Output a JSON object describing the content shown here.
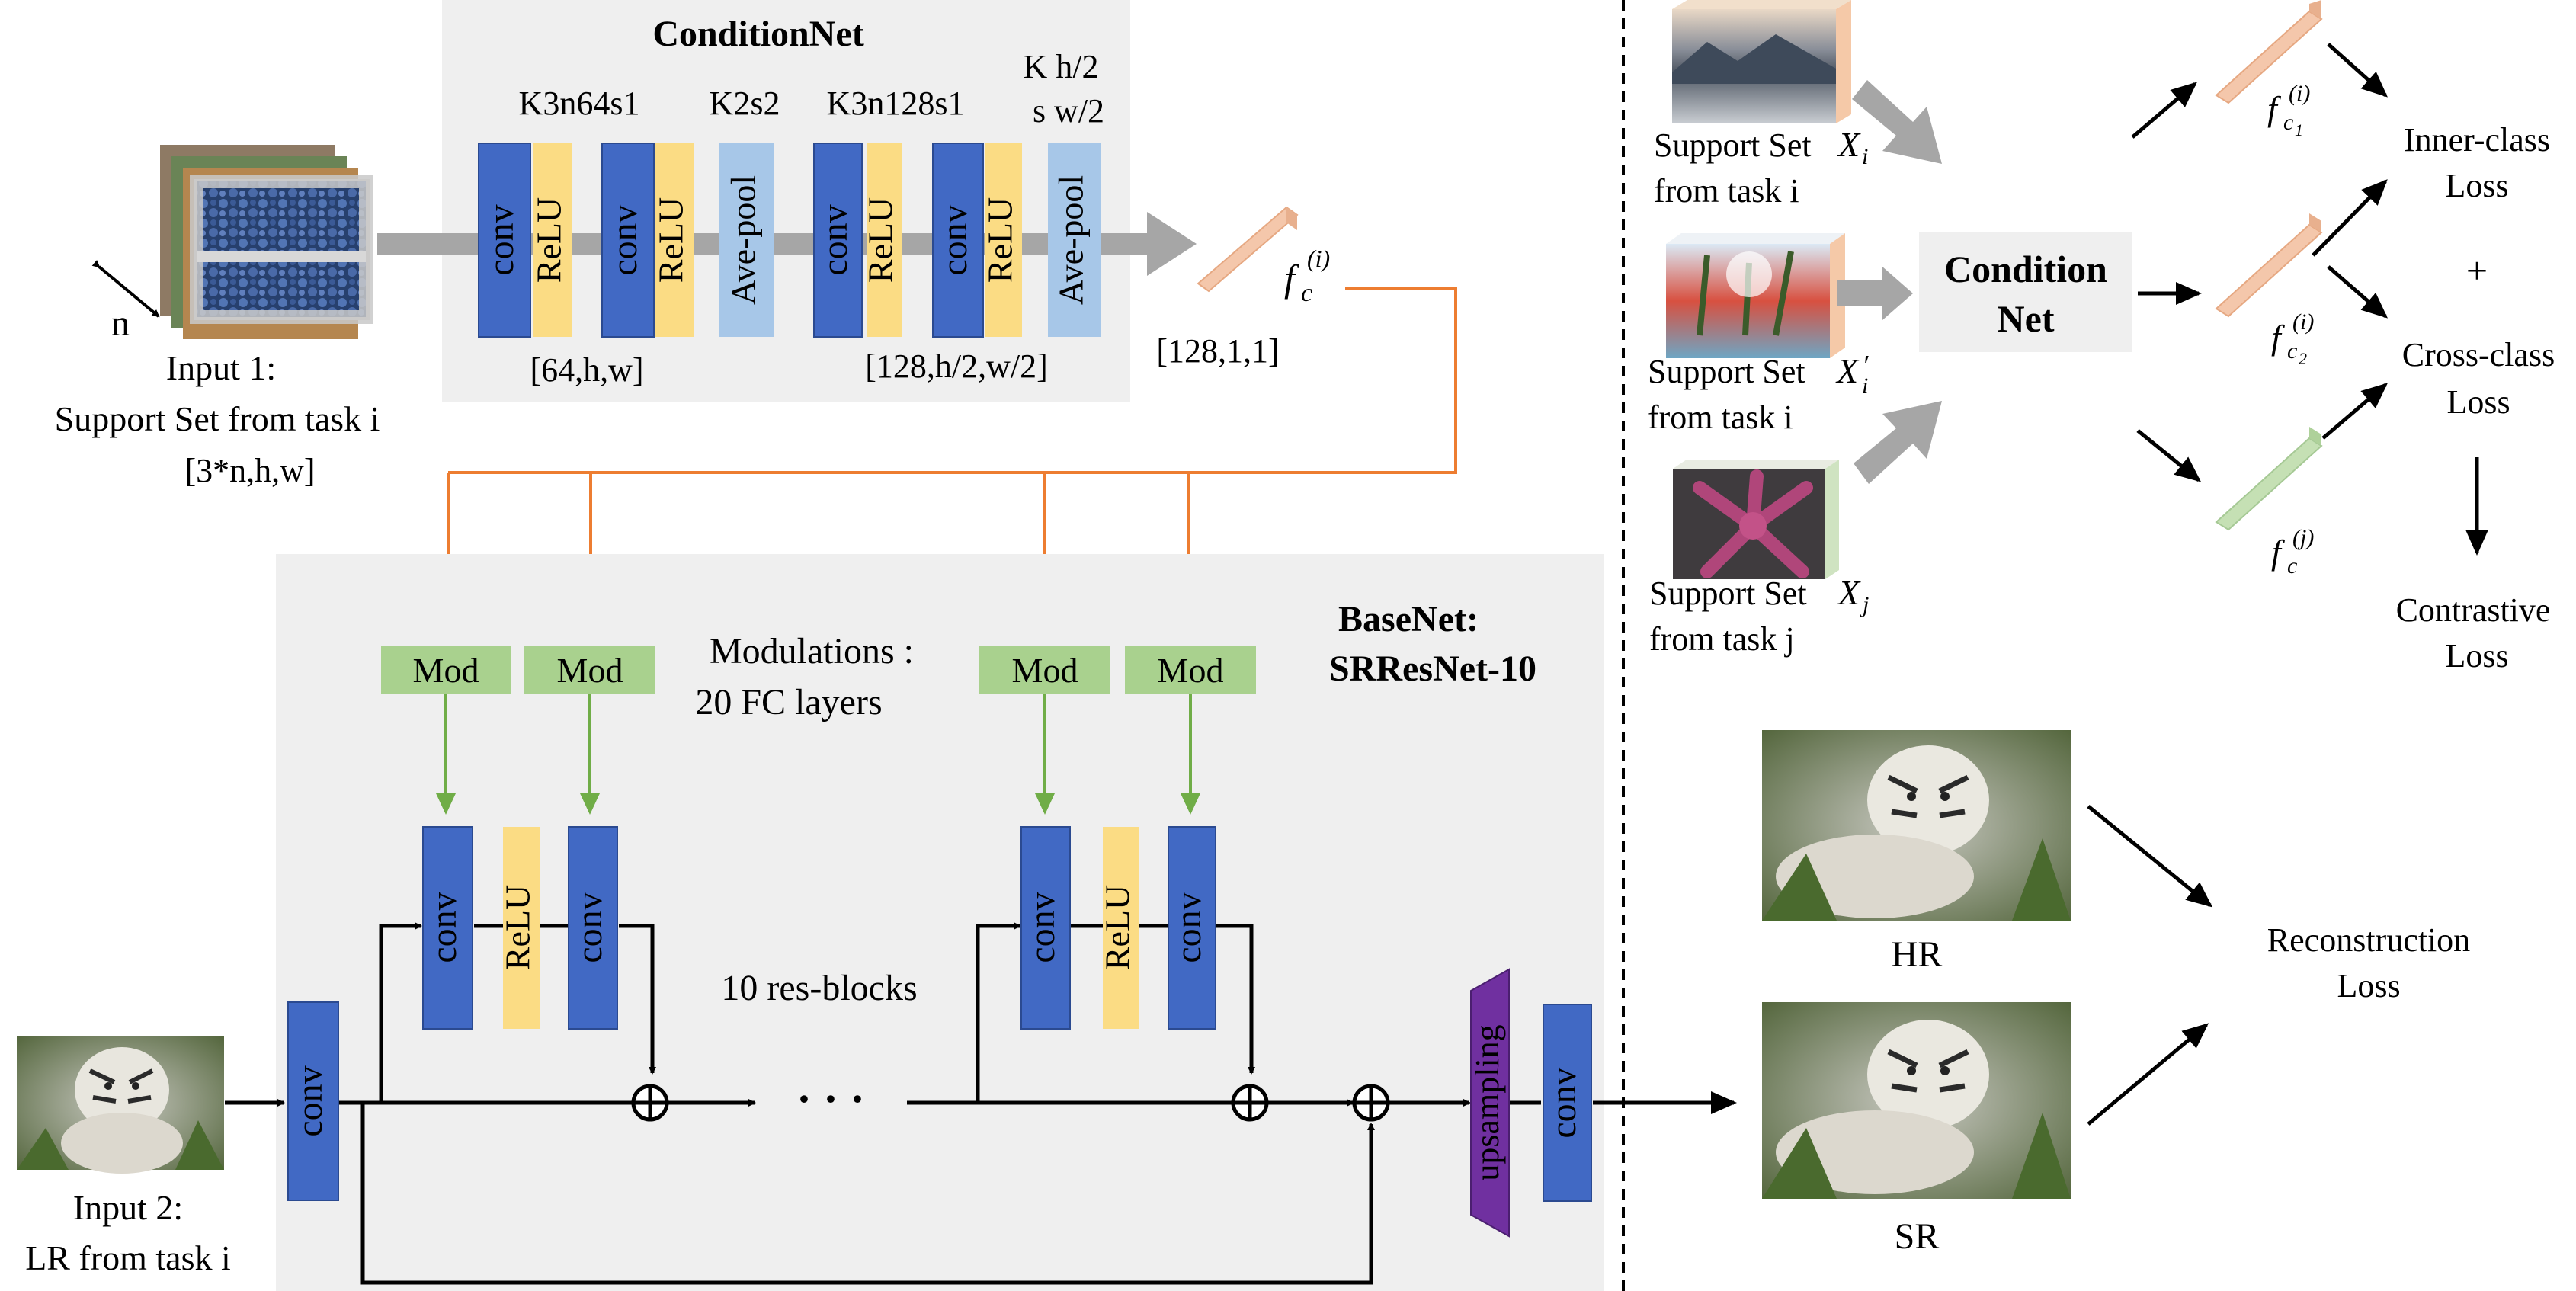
{
  "condition_net": {
    "title": "ConditionNet",
    "layer_specs": [
      "K3n64s1",
      "K2s2",
      "K3n128s1",
      "K h/2",
      "s w/2"
    ],
    "shape_after_first": "[64,h,w]",
    "shape_after_second": "[128,h/2,w/2]",
    "output_shape": "[128,1,1]"
  },
  "layers": {
    "conv": "conv",
    "relu": "ReLU",
    "avepool": "Ave-pool",
    "upsampling": "upsampling",
    "mod": "Mod"
  },
  "input1": {
    "line1": "Input 1:",
    "line2": "Support Set from task i",
    "shape": "[3*n,h,w]",
    "n_label": "n"
  },
  "feature": {
    "f": "f",
    "c": "c",
    "i_sup": "(i)",
    "c1": "c",
    "sub1": "1",
    "sub2": "2",
    "j_sup": "(j)"
  },
  "basenet": {
    "title_line1": "BaseNet:",
    "title_line2": "SRResNet-10",
    "modulations_line1": "Modulations :",
    "modulations_line2": "20 FC layers",
    "resblocks": "10 res-blocks",
    "dots": "· · ·"
  },
  "input2": {
    "line1": "Input 2:",
    "line2": "LR from task i"
  },
  "right_panel": {
    "support_xi": "Support Set",
    "from_task_i": "from task i",
    "from_task_j": "from task j",
    "X": "X",
    "i": "i",
    "j": "j",
    "prime": "′",
    "condition_net_line1": "Condition",
    "condition_net_line2": "Net",
    "inner_class_line1": "Inner-class",
    "inner_class_line2": "Loss",
    "plus": "+",
    "cross_class_line1": "Cross-class",
    "cross_class_line2": "Loss",
    "contrastive_line1": "Contrastive",
    "contrastive_line2": "Loss"
  },
  "outputs": {
    "hr": "HR",
    "sr": "SR",
    "reconstruction_line1": "Reconstruction",
    "reconstruction_line2": "Loss"
  },
  "colors": {
    "conv": "#4169c4",
    "relu": "#fbdc84",
    "avepool": "#a7c7e8",
    "mod": "#a9d18e",
    "upsampling": "#7030a0",
    "orange": "#ed7d31",
    "green_arrow": "#70ad47",
    "feature_orange": "#f4c7ab",
    "feature_green": "#c5e0b4",
    "panel": "#efefef"
  }
}
